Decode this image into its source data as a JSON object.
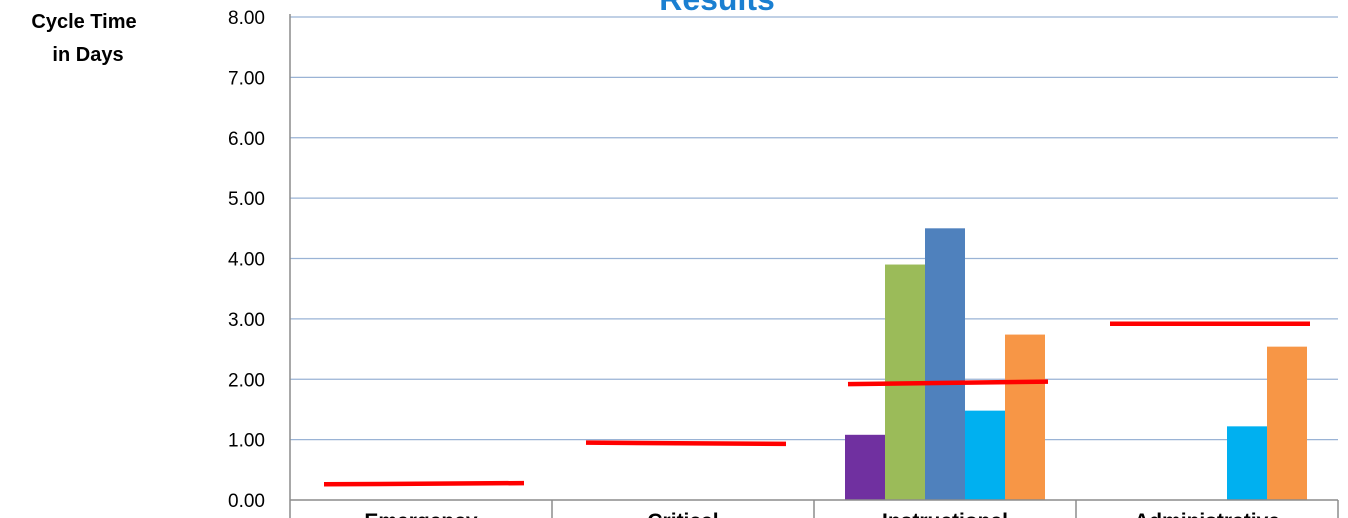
{
  "chart_data": {
    "type": "bar",
    "title": "Results",
    "ylabel_lines": [
      "Cycle Time",
      "in Days"
    ],
    "ylim": [
      0,
      8
    ],
    "yticks": [
      "0.00",
      "1.00",
      "2.00",
      "3.00",
      "4.00",
      "5.00",
      "6.00",
      "7.00",
      "8.00"
    ],
    "categories": [
      "Emergency",
      "Critical",
      "Instructional",
      "Administrative"
    ],
    "series": [
      {
        "color": "#7030a0",
        "values": [
          null,
          null,
          1.08,
          null
        ]
      },
      {
        "color": "#9bbb59",
        "values": [
          null,
          null,
          3.9,
          null
        ]
      },
      {
        "color": "#4f81bd",
        "values": [
          null,
          null,
          4.5,
          null
        ]
      },
      {
        "color": "#00b0f0",
        "values": [
          null,
          null,
          1.48,
          1.22
        ]
      },
      {
        "color": "#f79646",
        "values": [
          null,
          null,
          2.74,
          2.54
        ]
      }
    ],
    "targets": {
      "color": "#ff0000",
      "segments": [
        {
          "category": "Emergency",
          "start": 0.26,
          "end": 0.28
        },
        {
          "category": "Critical",
          "start": 0.95,
          "end": 0.93
        },
        {
          "category": "Instructional",
          "start": 1.92,
          "end": 1.96
        },
        {
          "category": "Administrative",
          "start": 2.92,
          "end": 2.92
        }
      ]
    },
    "grid": true,
    "legend": "none"
  }
}
